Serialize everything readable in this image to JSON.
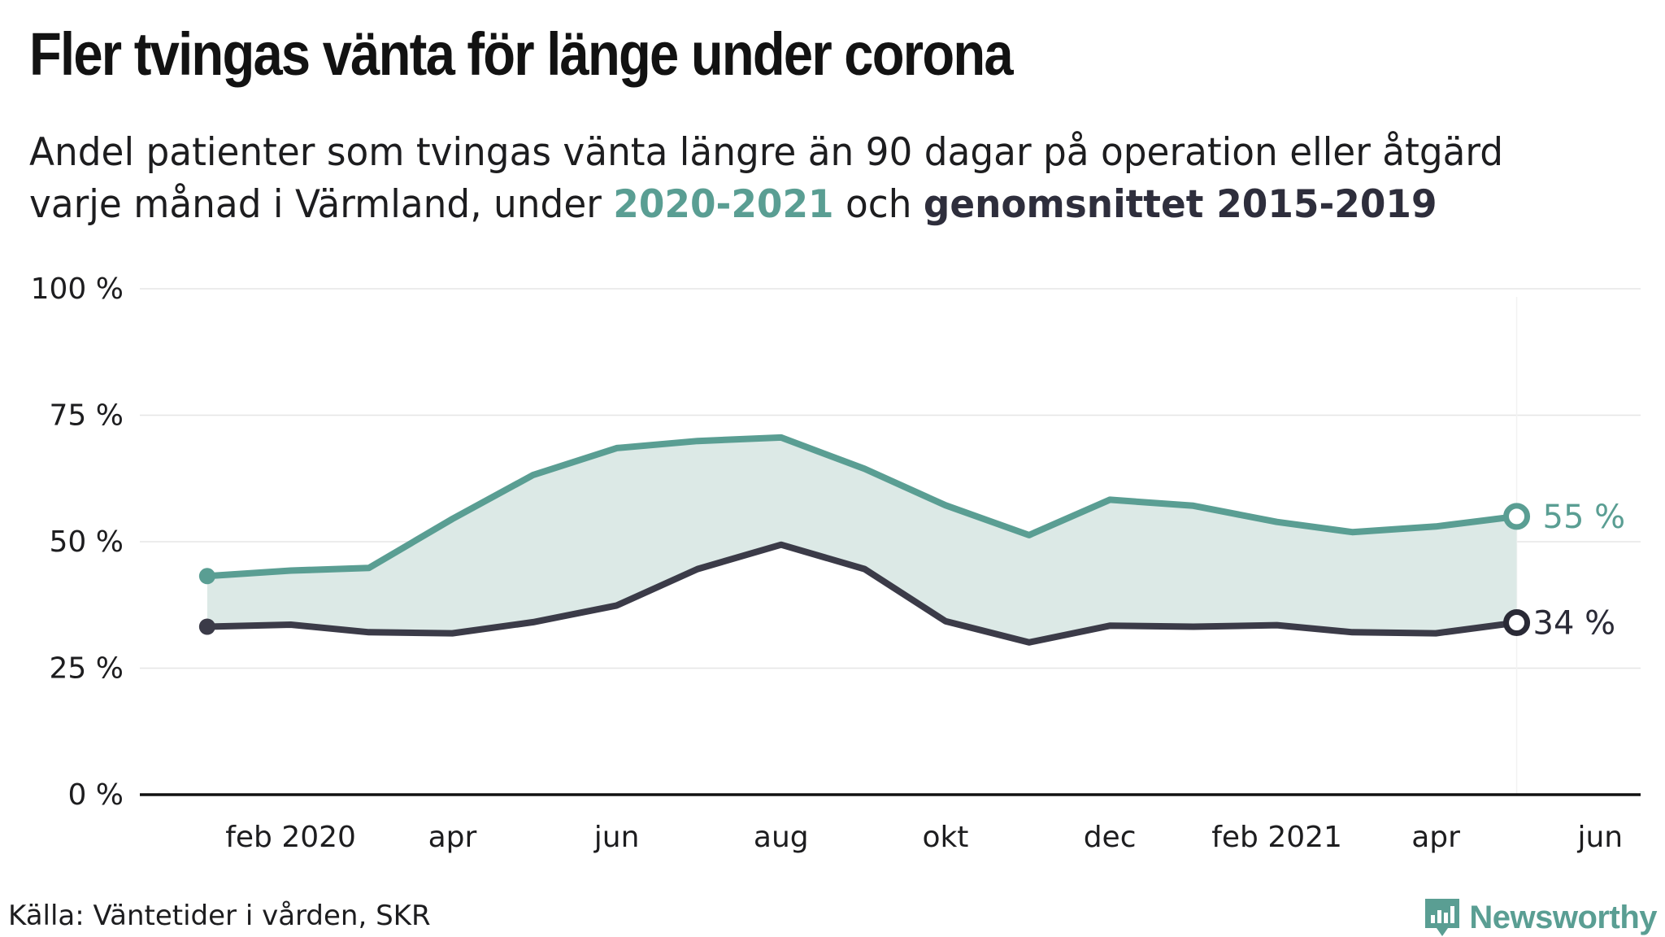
{
  "header": {
    "title": "Fler tvingas vänta för länge under corona",
    "subtitle_line1": "Andel patienter som tvingas vänta längre än 90 dagar på operation eller åtgärd",
    "subtitle_line2_prefix": "varje månad i Värmland, under ",
    "subtitle_highlight_1": "2020-2021",
    "subtitle_middle": " och ",
    "subtitle_highlight_2": "genomsnittet 2015-2019"
  },
  "colors": {
    "series_2020_2021": "#5a9e93",
    "series_average": "#3b3b48",
    "area_fill": "#dce9e6",
    "axis": "#111111",
    "grid": "#e6e6e6"
  },
  "chart_data": {
    "type": "line",
    "x": [
      "2020-01",
      "2020-02",
      "2020-03",
      "2020-04",
      "2020-05",
      "2020-06",
      "2020-07",
      "2020-08",
      "2020-09",
      "2020-10",
      "2020-11",
      "2020-12",
      "2021-01",
      "2021-02",
      "2021-03",
      "2021-04",
      "2021-05"
    ],
    "series": [
      {
        "name": "2020-2021",
        "color": "#5a9e93",
        "values": [
          43.2,
          44.3,
          44.8,
          54.5,
          63.2,
          68.5,
          69.9,
          70.6,
          64.4,
          57.2,
          51.3,
          58.3,
          57.1,
          53.9,
          51.9,
          53.0,
          55.0
        ]
      },
      {
        "name": "genomsnittet 2015-2019",
        "color": "#3b3b48",
        "values": [
          33.2,
          33.6,
          32.1,
          31.9,
          34.1,
          37.4,
          44.6,
          49.4,
          44.6,
          34.3,
          30.1,
          33.4,
          33.2,
          33.5,
          32.1,
          31.9,
          34.0
        ]
      }
    ],
    "y_ticks": [
      {
        "value": 0,
        "label": "0 %"
      },
      {
        "value": 25,
        "label": "25 %"
      },
      {
        "value": 50,
        "label": "50 %"
      },
      {
        "value": 75,
        "label": "75 %"
      },
      {
        "value": 100,
        "label": "100 %"
      }
    ],
    "x_ticks": [
      {
        "date": "2020-02",
        "label": "feb 2020"
      },
      {
        "date": "2020-04",
        "label": "apr"
      },
      {
        "date": "2020-06",
        "label": "jun"
      },
      {
        "date": "2020-08",
        "label": "aug"
      },
      {
        "date": "2020-10",
        "label": "okt"
      },
      {
        "date": "2020-12",
        "label": "dec"
      },
      {
        "date": "2021-02",
        "label": "feb 2021"
      },
      {
        "date": "2021-04",
        "label": "apr"
      },
      {
        "date": "2021-06",
        "label": "jun"
      }
    ],
    "end_labels": [
      {
        "series": 0,
        "label": "55 %"
      },
      {
        "series": 1,
        "label": "34 %"
      }
    ],
    "ylim": [
      0,
      100
    ],
    "xlim": [
      "2019-12-21",
      "2021-06-30"
    ],
    "grid": true
  },
  "footer": {
    "source": "Källa: Väntetider i vården, SKR",
    "brand": "Newsworthy"
  }
}
